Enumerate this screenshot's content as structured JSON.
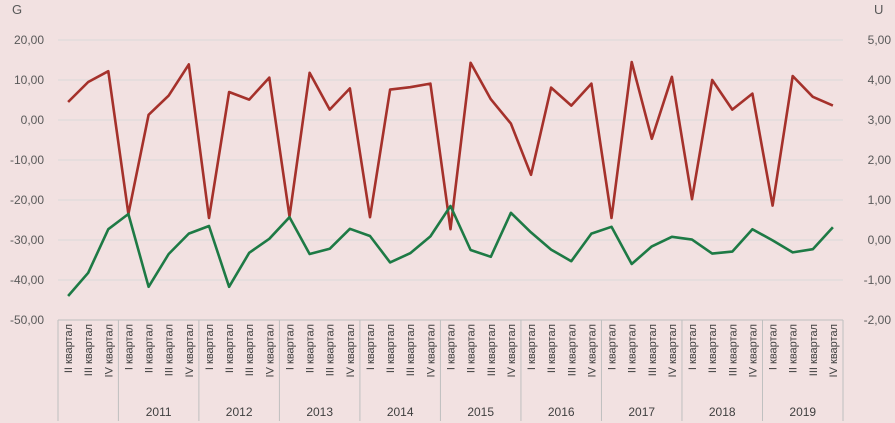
{
  "chart_data": {
    "type": "line",
    "left_axis_label": "G",
    "right_axis_label": "U",
    "left_ticks": [
      "20,00",
      "10,00",
      "0,00",
      "-10,00",
      "-20,00",
      "-30,00",
      "-40,00",
      "-50,00"
    ],
    "right_ticks": [
      "5,00",
      "4,00",
      "3,00",
      "2,00",
      "1,00",
      "0,00",
      "-1,00",
      "-2,00"
    ],
    "ylim_left": [
      -50,
      20
    ],
    "ylim_right": [
      -2,
      5
    ],
    "grid": true,
    "legend": "none",
    "categories": [
      {
        "quarter": "II квартал",
        "year": ""
      },
      {
        "quarter": "III квартал",
        "year": ""
      },
      {
        "quarter": "IV квартал",
        "year": ""
      },
      {
        "quarter": "I квартал",
        "year": "2011"
      },
      {
        "quarter": "II квартал",
        "year": "2011"
      },
      {
        "quarter": "III квартал",
        "year": "2011"
      },
      {
        "quarter": "IV квартал",
        "year": "2011"
      },
      {
        "quarter": "I квартал",
        "year": "2012"
      },
      {
        "quarter": "II квартал",
        "year": "2012"
      },
      {
        "quarter": "III квартал",
        "year": "2012"
      },
      {
        "quarter": "IV квартал",
        "year": "2012"
      },
      {
        "quarter": "I квартал",
        "year": "2013"
      },
      {
        "quarter": "II квартал",
        "year": "2013"
      },
      {
        "quarter": "III квартал",
        "year": "2013"
      },
      {
        "quarter": "IV квартал",
        "year": "2013"
      },
      {
        "quarter": "I квартал",
        "year": "2014"
      },
      {
        "quarter": "II квартал",
        "year": "2014"
      },
      {
        "quarter": "III квартал",
        "year": "2014"
      },
      {
        "quarter": "IV квартал",
        "year": "2014"
      },
      {
        "quarter": "I квартал",
        "year": "2015"
      },
      {
        "quarter": "II квартал",
        "year": "2015"
      },
      {
        "quarter": "III квартал",
        "year": "2015"
      },
      {
        "quarter": "IV квартал",
        "year": "2015"
      },
      {
        "quarter": "I квартал",
        "year": "2016"
      },
      {
        "quarter": "II квартал",
        "year": "2016"
      },
      {
        "quarter": "III квартал",
        "year": "2016"
      },
      {
        "quarter": "IV квартал",
        "year": "2016"
      },
      {
        "quarter": "I квартал",
        "year": "2017"
      },
      {
        "quarter": "II квартал",
        "year": "2017"
      },
      {
        "quarter": "III квартал",
        "year": "2017"
      },
      {
        "quarter": "IV квартал",
        "year": "2017"
      },
      {
        "quarter": "I квартал",
        "year": "2018"
      },
      {
        "quarter": "II квартал",
        "year": "2018"
      },
      {
        "quarter": "III квартал",
        "year": "2018"
      },
      {
        "quarter": "IV квартал",
        "year": "2018"
      },
      {
        "quarter": "I квартал",
        "year": "2019"
      },
      {
        "quarter": "II квартал",
        "year": "2019"
      },
      {
        "quarter": "III квартал",
        "year": "2019"
      },
      {
        "quarter": "IV квартал",
        "year": "2019"
      }
    ],
    "year_groups": [
      "2011",
      "2012",
      "2013",
      "2014",
      "2015",
      "2016",
      "2017",
      "2018",
      "2019"
    ],
    "series": [
      {
        "axis": "left",
        "color": "#a5312b",
        "values": [
          4.5,
          9.5,
          12.2,
          -23.5,
          1.3,
          6.1,
          13.9,
          -24.5,
          7.0,
          5.1,
          10.6,
          -24.1,
          11.8,
          2.6,
          7.9,
          -24.3,
          7.6,
          8.2,
          9.1,
          -27.3,
          14.3,
          5.2,
          -0.9,
          -13.7,
          8.1,
          3.6,
          9.1,
          -24.5,
          14.5,
          -4.7,
          10.8,
          -19.8,
          10.0,
          2.6,
          6.6,
          -21.4,
          11.0,
          5.8,
          3.6
        ]
      },
      {
        "axis": "right",
        "color": "#1e7a45",
        "values": [
          -1.4,
          -0.82,
          0.27,
          0.65,
          -1.17,
          -0.35,
          0.16,
          0.35,
          -1.17,
          -0.32,
          0.03,
          0.57,
          -0.35,
          -0.22,
          0.28,
          0.1,
          -0.56,
          -0.33,
          0.09,
          0.85,
          -0.25,
          -0.42,
          0.68,
          0.19,
          -0.24,
          -0.53,
          0.16,
          0.33,
          -0.6,
          -0.16,
          0.08,
          0.01,
          -0.34,
          -0.29,
          0.27,
          -0.01,
          -0.31,
          -0.23,
          0.32
        ]
      }
    ]
  }
}
